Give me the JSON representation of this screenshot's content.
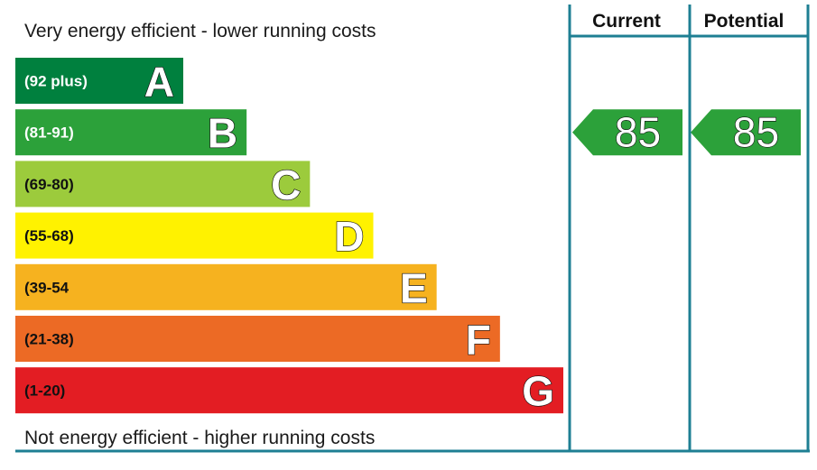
{
  "chart": {
    "top_caption": "Very energy efficient - lower running costs",
    "bottom_caption": "Not energy efficient - higher running costs",
    "columns": {
      "current_label": "Current",
      "potential_label": "Potential"
    },
    "line_color": "#1e7f93"
  },
  "chart_data": {
    "type": "bar",
    "categories": [
      "A",
      "B",
      "C",
      "D",
      "E",
      "F",
      "G"
    ],
    "ranges": [
      "(92 plus)",
      "(81-91)",
      "(69-80)",
      "(55-68)",
      "(39-54",
      "(21-38)",
      "(1-20)"
    ],
    "range_min": [
      92,
      81,
      69,
      55,
      39,
      21,
      1
    ],
    "range_max": [
      null,
      91,
      80,
      68,
      54,
      38,
      20
    ],
    "colors": [
      "#00803e",
      "#2ca13a",
      "#9ccb3c",
      "#fff200",
      "#f6b21f",
      "#ec6a25",
      "#e31d23"
    ],
    "current": {
      "value": 85,
      "band": "B",
      "color": "#2ca13a"
    },
    "potential": {
      "value": 85,
      "band": "B",
      "color": "#2ca13a"
    }
  }
}
